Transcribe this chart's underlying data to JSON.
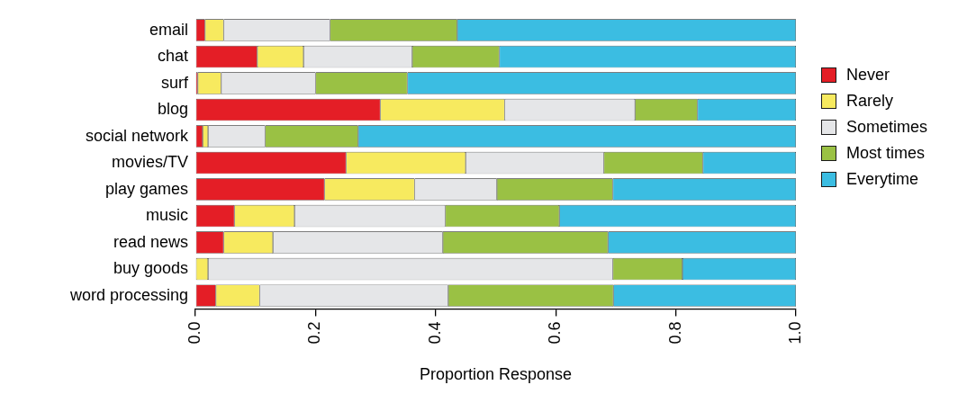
{
  "chart_data": {
    "type": "bar",
    "orientation": "horizontal",
    "stacked": true,
    "categories": [
      "email",
      "chat",
      "surf",
      "blog",
      "social network",
      "movies/TV",
      "play games",
      "music",
      "read news",
      "buy goods",
      "word processing"
    ],
    "series": [
      {
        "name": "Never",
        "color": "#e41e26",
        "values": [
          0.016,
          0.103,
          0.004,
          0.308,
          0.012,
          0.251,
          0.215,
          0.065,
          0.047,
          0,
          0.034
        ]
      },
      {
        "name": "Rarely",
        "color": "#f7ea5f",
        "values": [
          0.031,
          0.077,
          0.039,
          0.207,
          0.009,
          0.199,
          0.15,
          0.1,
          0.082,
          0.021,
          0.073
        ]
      },
      {
        "name": "Sometimes",
        "color": "#e5e6e8",
        "values": [
          0.177,
          0.181,
          0.157,
          0.217,
          0.095,
          0.23,
          0.137,
          0.251,
          0.283,
          0.674,
          0.314
        ]
      },
      {
        "name": "Most times",
        "color": "#9ac144",
        "values": [
          0.212,
          0.145,
          0.153,
          0.104,
          0.155,
          0.165,
          0.193,
          0.19,
          0.275,
          0.116,
          0.275
        ]
      },
      {
        "name": "Everytime",
        "color": "#3bbde2",
        "values": [
          0.564,
          0.494,
          0.647,
          0.164,
          0.729,
          0.155,
          0.305,
          0.394,
          0.313,
          0.189,
          0.304
        ]
      }
    ],
    "xlabel": "Proportion Response",
    "xlim": [
      0,
      1
    ],
    "xticks": [
      {
        "value": 0,
        "label": "0.0"
      },
      {
        "value": 0.2,
        "label": "0.2"
      },
      {
        "value": 0.4,
        "label": "0.4"
      },
      {
        "value": 0.6,
        "label": "0.6"
      },
      {
        "value": 0.8,
        "label": "0.8"
      },
      {
        "value": 1,
        "label": "1.0"
      }
    ],
    "grid": false,
    "legend": "right"
  }
}
